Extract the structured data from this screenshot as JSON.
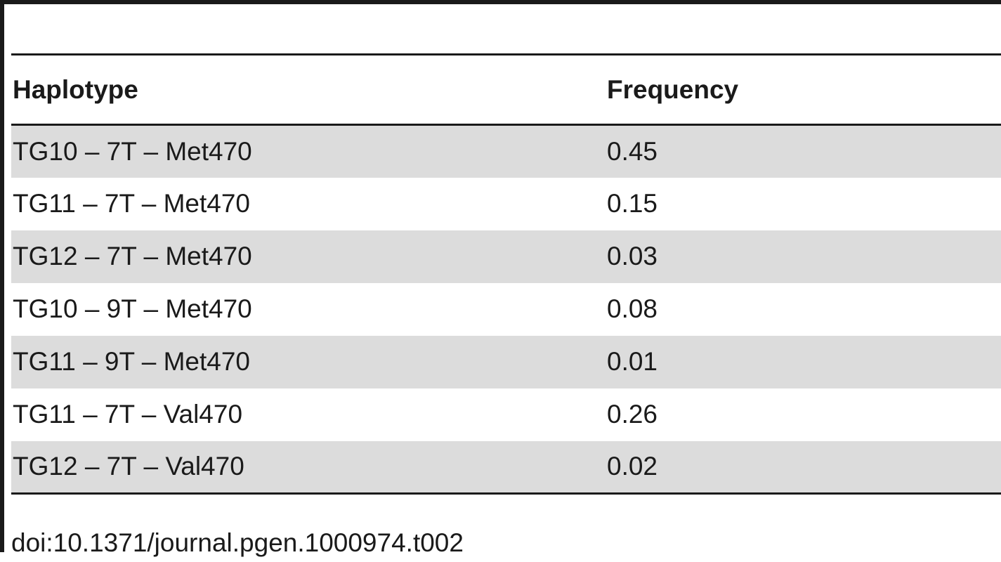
{
  "table": {
    "headers": [
      "Haplotype",
      "Frequency"
    ],
    "rows": [
      [
        "TG10 – 7T – Met470",
        "0.45"
      ],
      [
        "TG11 – 7T – Met470",
        "0.15"
      ],
      [
        "TG12 – 7T – Met470",
        "0.03"
      ],
      [
        "TG10 – 9T – Met470",
        "0.08"
      ],
      [
        "TG11 – 9T – Met470",
        "0.01"
      ],
      [
        "TG11 – 7T – Val470",
        "0.26"
      ],
      [
        "TG12 – 7T – Val470",
        "0.02"
      ]
    ]
  },
  "footer": {
    "doi": "doi:10.1371/journal.pgen.1000974.t002"
  }
}
